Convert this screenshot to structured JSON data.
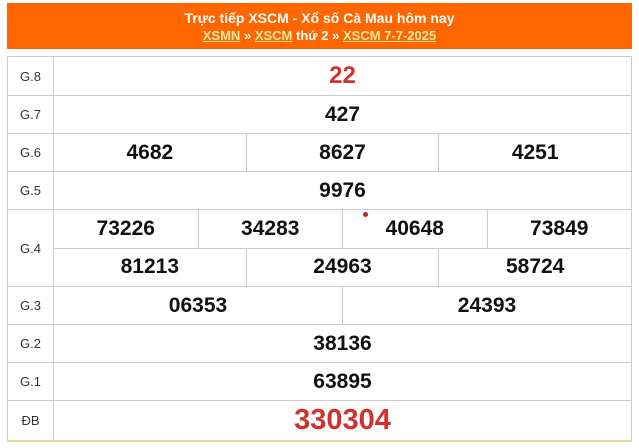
{
  "header": {
    "title": "Trực tiếp XSCM - Xổ số Cà Mau hôm nay",
    "breadcrumb": {
      "link_xsmn": "XSMN",
      "sep1": "»",
      "link_xscm": "XSCM",
      "text_weekday": "thứ 2",
      "sep2": "»",
      "link_date": "XSCM 7-7-2025"
    },
    "bg_color": "#ff6600",
    "title_color": "#ffffff",
    "link_color": "#ffe9a0"
  },
  "table": {
    "rows": [
      {
        "label": "G.8",
        "cells": [
          "22"
        ]
      },
      {
        "label": "G.7",
        "cells": [
          "427"
        ]
      },
      {
        "label": "G.6",
        "cells": [
          "4682",
          "8627",
          "4251"
        ]
      },
      {
        "label": "G.5",
        "cells": [
          "9976"
        ]
      },
      {
        "label": "G.4",
        "lines": [
          [
            "73226",
            "34283",
            "40648",
            "73849"
          ],
          [
            "81213",
            "24963",
            "58724"
          ]
        ]
      },
      {
        "label": "G.3",
        "cells": [
          "06353",
          "24393"
        ]
      },
      {
        "label": "G.2",
        "cells": [
          "38136"
        ]
      },
      {
        "label": "G.1",
        "cells": [
          "63895"
        ]
      },
      {
        "label": "ĐB",
        "cells": [
          "330304"
        ]
      }
    ],
    "colors": {
      "number": "#111111",
      "highlight_red": "#d4302e",
      "border": "#cccccc",
      "bottom_border": "#e3d593",
      "live_dot": "#c12222"
    }
  }
}
